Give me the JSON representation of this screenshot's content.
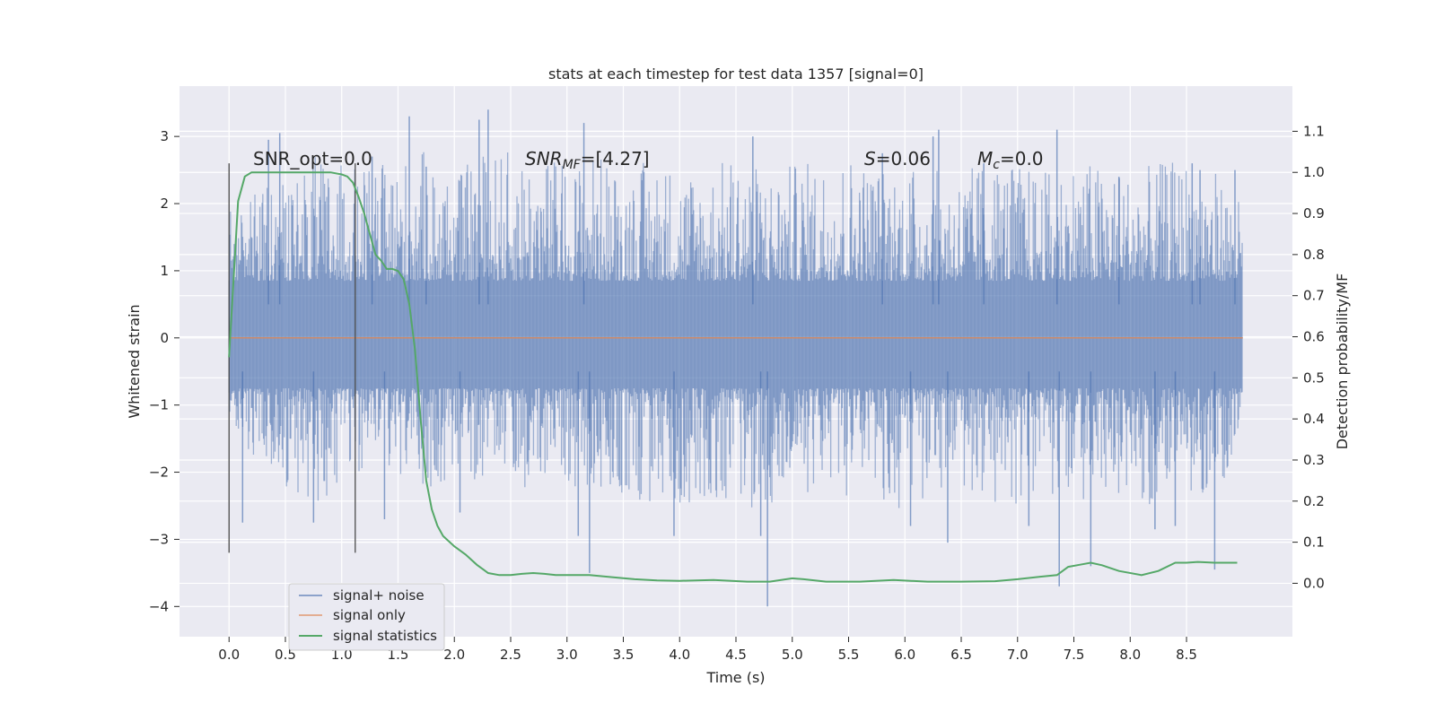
{
  "chart_data": {
    "type": "line",
    "title": "stats at each timestep for test data 1357 [signal=0]",
    "xlabel": "Time (s)",
    "ylabel": "Whitened strain",
    "y2label": "Detection probability/MF",
    "xlim": [
      -0.44,
      9.44
    ],
    "ylim": [
      -4.45,
      3.75
    ],
    "y2lim": [
      -0.13,
      1.21
    ],
    "x_ticks": [
      0.0,
      0.5,
      1.0,
      1.5,
      2.0,
      2.5,
      3.0,
      3.5,
      4.0,
      4.5,
      5.0,
      5.5,
      6.0,
      6.5,
      7.0,
      7.5,
      8.0,
      8.5
    ],
    "x_tick_labels": [
      "0.0",
      "0.5",
      "1.0",
      "1.5",
      "2.0",
      "2.5",
      "3.0",
      "3.5",
      "4.0",
      "4.5",
      "5.0",
      "5.5",
      "6.0",
      "6.5",
      "7.0",
      "7.5",
      "8.0",
      "8.5"
    ],
    "y_ticks": [
      3,
      2,
      1,
      0,
      -1,
      -2,
      -3,
      -4
    ],
    "y_tick_labels": [
      "3",
      "2",
      "1",
      "0",
      "−1",
      "−2",
      "−3",
      "−4"
    ],
    "y2_ticks": [
      1.1,
      1.0,
      0.9,
      0.8,
      0.7,
      0.6,
      0.5,
      0.4,
      0.3,
      0.2,
      0.1,
      0.0
    ],
    "y2_tick_labels": [
      "1.1",
      "1.0",
      "0.9",
      "0.8",
      "0.7",
      "0.6",
      "0.5",
      "0.4",
      "0.3",
      "0.2",
      "0.1",
      "0.0"
    ],
    "grid": true,
    "legend_position": "lower-left",
    "series": [
      {
        "name": "signal+ noise",
        "axis": "left",
        "color": "#4c72b0",
        "x_range": [
          0.0,
          9.0
        ],
        "envelope": [
          [
            0.0,
            -1.4,
            1.9
          ],
          [
            0.25,
            -1.8,
            2.2
          ],
          [
            0.5,
            -2.2,
            2.6
          ],
          [
            0.75,
            -2.6,
            2.7
          ],
          [
            1.0,
            -2.2,
            2.6
          ],
          [
            1.25,
            -1.9,
            2.5
          ],
          [
            1.5,
            -2.1,
            2.7
          ],
          [
            1.75,
            -2.3,
            2.8
          ],
          [
            2.0,
            -2.2,
            2.4
          ],
          [
            2.25,
            -2.3,
            2.8
          ],
          [
            2.5,
            -2.0,
            2.8
          ],
          [
            2.75,
            -2.5,
            2.8
          ],
          [
            3.0,
            -2.3,
            2.6
          ],
          [
            3.25,
            -2.4,
            2.8
          ],
          [
            3.5,
            -2.4,
            2.5
          ],
          [
            3.75,
            -2.6,
            2.7
          ],
          [
            4.0,
            -2.5,
            2.6
          ],
          [
            4.25,
            -2.4,
            2.5
          ],
          [
            4.5,
            -2.5,
            2.8
          ],
          [
            4.75,
            -2.6,
            2.5
          ],
          [
            5.0,
            -2.5,
            2.6
          ],
          [
            5.25,
            -2.2,
            2.7
          ],
          [
            5.5,
            -2.4,
            2.8
          ],
          [
            5.75,
            -2.5,
            2.6
          ],
          [
            6.0,
            -2.6,
            2.6
          ],
          [
            6.25,
            -2.4,
            2.5
          ],
          [
            6.5,
            -2.3,
            2.5
          ],
          [
            6.75,
            -2.5,
            2.7
          ],
          [
            7.0,
            -2.5,
            2.6
          ],
          [
            7.25,
            -2.4,
            2.5
          ],
          [
            7.5,
            -2.4,
            2.7
          ],
          [
            7.75,
            -2.4,
            2.6
          ],
          [
            8.0,
            -2.6,
            2.5
          ],
          [
            8.25,
            -2.5,
            2.6
          ],
          [
            8.5,
            -2.3,
            2.7
          ],
          [
            8.75,
            -2.4,
            2.5
          ],
          [
            9.0,
            -1.6,
            2.0
          ]
        ],
        "spikes": [
          [
            0.45,
            3.05
          ],
          [
            0.35,
            2.95
          ],
          [
            1.27,
            2.7
          ],
          [
            1.6,
            3.3
          ],
          [
            1.75,
            2.55
          ],
          [
            2.22,
            3.25
          ],
          [
            2.3,
            3.4
          ],
          [
            3.15,
            3.2
          ],
          [
            4.65,
            3.0
          ],
          [
            6.25,
            3.0
          ],
          [
            6.3,
            3.1
          ],
          [
            5.8,
            2.75
          ],
          [
            7.35,
            3.1
          ],
          [
            8.55,
            2.6
          ],
          [
            8.62,
            2.5
          ],
          [
            7.9,
            2.4
          ],
          [
            6.7,
            2.6
          ],
          [
            8.93,
            2.5
          ],
          [
            3.2,
            -3.5
          ],
          [
            4.78,
            -4.0
          ],
          [
            7.37,
            -3.7
          ],
          [
            7.65,
            -3.4
          ],
          [
            8.75,
            -3.45
          ],
          [
            3.1,
            -2.95
          ],
          [
            0.12,
            -2.75
          ],
          [
            0.75,
            -2.75
          ],
          [
            3.95,
            -2.95
          ],
          [
            4.72,
            -2.95
          ],
          [
            6.38,
            -3.05
          ],
          [
            8.22,
            -2.85
          ],
          [
            2.05,
            -2.6
          ],
          [
            1.38,
            -2.7
          ],
          [
            6.05,
            -2.8
          ],
          [
            7.1,
            -2.8
          ],
          [
            8.4,
            -2.8
          ]
        ]
      },
      {
        "name": "signal only",
        "axis": "left",
        "color": "#dd8452",
        "x": [
          0.0,
          9.0
        ],
        "y": [
          0.0,
          0.0
        ]
      },
      {
        "name": "signal statistics",
        "axis": "right",
        "color": "#55a868",
        "x": [
          0.0,
          0.08,
          0.14,
          0.2,
          0.3,
          0.5,
          0.7,
          0.9,
          1.0,
          1.05,
          1.1,
          1.15,
          1.2,
          1.25,
          1.3,
          1.35,
          1.4,
          1.45,
          1.5,
          1.55,
          1.6,
          1.65,
          1.7,
          1.75,
          1.8,
          1.85,
          1.9,
          2.0,
          2.1,
          2.2,
          2.3,
          2.4,
          2.5,
          2.6,
          2.7,
          2.8,
          2.9,
          3.0,
          3.2,
          3.4,
          3.6,
          3.8,
          4.0,
          4.3,
          4.6,
          4.8,
          5.0,
          5.1,
          5.3,
          5.6,
          5.9,
          6.2,
          6.5,
          6.8,
          7.0,
          7.2,
          7.35,
          7.45,
          7.55,
          7.65,
          7.75,
          7.9,
          8.1,
          8.25,
          8.4,
          8.5,
          8.6,
          8.75,
          8.95
        ],
        "y": [
          0.55,
          0.93,
          0.99,
          1.0,
          1.0,
          1.0,
          1.0,
          1.0,
          0.995,
          0.99,
          0.975,
          0.94,
          0.9,
          0.85,
          0.8,
          0.785,
          0.765,
          0.765,
          0.76,
          0.74,
          0.68,
          0.57,
          0.4,
          0.25,
          0.18,
          0.14,
          0.115,
          0.09,
          0.07,
          0.045,
          0.025,
          0.02,
          0.02,
          0.023,
          0.025,
          0.023,
          0.02,
          0.02,
          0.02,
          0.015,
          0.01,
          0.007,
          0.006,
          0.008,
          0.004,
          0.004,
          0.012,
          0.01,
          0.004,
          0.004,
          0.008,
          0.004,
          0.004,
          0.005,
          0.01,
          0.016,
          0.02,
          0.04,
          0.045,
          0.05,
          0.044,
          0.03,
          0.02,
          0.03,
          0.05,
          0.05,
          0.052,
          0.05,
          0.05
        ]
      }
    ],
    "vertical_lines": [
      {
        "x": 0.0,
        "y_range": [
          -3.2,
          2.6
        ]
      },
      {
        "x": 1.12,
        "y_range": [
          -3.2,
          2.6
        ]
      }
    ],
    "annotations": [
      {
        "text": "SNR_opt=0.0",
        "x": 0.2,
        "y": 2.65
      },
      {
        "text": "SNR_MF=[4.27]",
        "x": 2.6,
        "y": 2.65
      },
      {
        "text": "S=0.06",
        "x": 5.6,
        "y": 2.65
      },
      {
        "text": "M_c=0.0",
        "x": 6.6,
        "y": 2.65
      }
    ]
  }
}
